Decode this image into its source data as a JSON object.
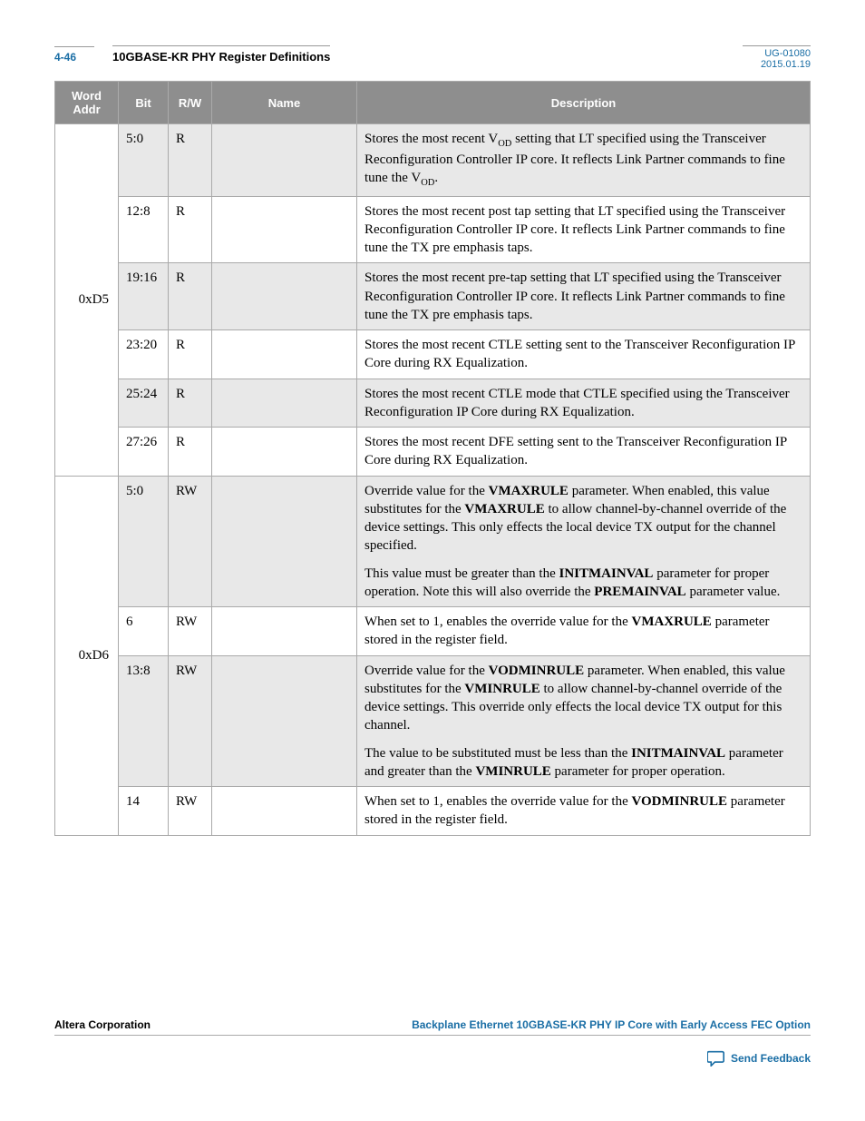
{
  "header": {
    "page_number": "4-46",
    "title": "10GBASE-KR PHY Register Definitions",
    "doc_id": "UG-01080",
    "date": "2015.01.19"
  },
  "columns": [
    "Word Addr",
    "Bit",
    "R/W",
    "Name",
    "Description"
  ],
  "groups": [
    {
      "addr": "0xD5",
      "rows": [
        {
          "bit": "5:0",
          "rw": "R",
          "name": "",
          "desc_html": "Stores the most recent V<sub>OD</sub> setting that LT specified using the Transceiver Reconfiguration Controller IP core. It reflects Link Partner commands to fine tune the V<sub>OD</sub>.",
          "shaded": true
        },
        {
          "bit": "12:8",
          "rw": "R",
          "name": "",
          "desc_html": "Stores the most recent post tap setting that LT specified using the Transceiver Reconfiguration Controller IP core. It reflects Link Partner commands to fine tune the TX pre emphasis taps.",
          "shaded": false
        },
        {
          "bit": "19:16",
          "rw": "R",
          "name": "",
          "desc_html": "Stores the most recent pre-tap setting that LT specified using the Transceiver Reconfiguration Controller IP core. It reflects Link Partner commands to fine tune the TX pre emphasis taps.",
          "shaded": true
        },
        {
          "bit": "23:20",
          "rw": "R",
          "name": "",
          "desc_html": "Stores the most recent CTLE setting sent to the Transceiver Reconfiguration IP Core during RX Equalization.",
          "shaded": false
        },
        {
          "bit": "25:24",
          "rw": "R",
          "name": "",
          "desc_html": "Stores the most recent CTLE mode that CTLE specified using the Transceiver Reconfiguration IP Core during RX Equalization.",
          "shaded": true
        },
        {
          "bit": "27:26",
          "rw": "R",
          "name": "",
          "desc_html": "Stores the most recent DFE setting sent to the Transceiver Reconfiguration IP Core during RX Equalization.",
          "shaded": false
        }
      ]
    },
    {
      "addr": "0xD6",
      "rows": [
        {
          "bit": "5:0",
          "rw": "RW",
          "name": "",
          "desc_html": "<p>Override value for the <b>VMAXRULE</b> parameter. When enabled, this value substitutes for the <b>VMAXRULE</b> to allow channel-by-channel override of the device settings. This only effects the local device TX output for the channel specified.</p><p>This value must be greater than the <b>INITMAINVAL</b> parameter for proper operation. Note this will also override the <b>PREMAINVAL</b> parameter value.</p>",
          "shaded": true
        },
        {
          "bit": "6",
          "rw": "RW",
          "name": "",
          "desc_html": "When set to 1, enables the override value for the <b>VMAXRULE</b> parameter stored in the register field.",
          "shaded": false
        },
        {
          "bit": "13:8",
          "rw": "RW",
          "name": "",
          "desc_html": "<p>Override value for the <b>VODMINRULE</b> parameter. When enabled, this value substitutes for the <b>VMINRULE</b> to allow channel-by-channel override of the device settings. This override only effects the local device TX output for this channel.</p><p>The value to be substituted must be less than the <b>INITMAINVAL</b> parameter and greater than the <b>VMINRULE</b> parameter for proper operation.</p>",
          "shaded": true
        },
        {
          "bit": "14",
          "rw": "RW",
          "name": "",
          "desc_html": "When set to 1, enables the override value for the <b>VODMINRULE</b> parameter stored in the register field.",
          "shaded": false
        }
      ]
    }
  ],
  "footer": {
    "left": "Altera Corporation",
    "right": "Backplane Ethernet 10GBASE-KR PHY IP Core with Early Access FEC Option",
    "feedback": "Send Feedback"
  },
  "colors": {
    "header_bg": "#8e8e8e",
    "link": "#1a6ea5",
    "shaded_row": "#e8e8e8",
    "border": "#aaaaaa"
  }
}
